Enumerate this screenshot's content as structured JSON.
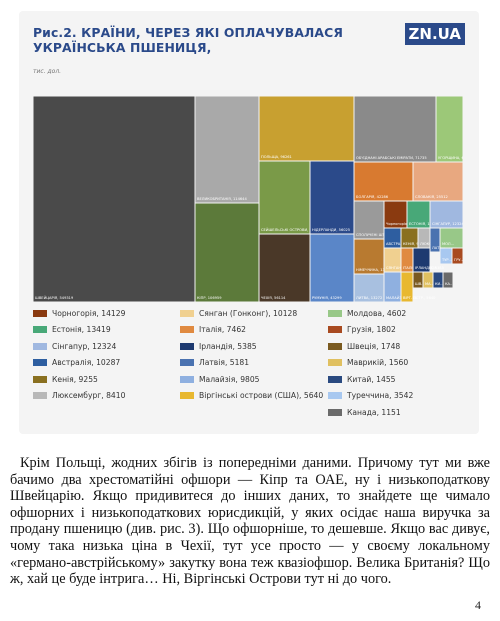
{
  "figure": {
    "title": "Рис.2. КРАЇНИ, ЧЕРЕЗ ЯКІ ОПЛАЧУВАЛАСЯ УКРАЇНСЬКА ПШЕНИЦЯ,",
    "logo": "ZN.UA",
    "unit": "тис. дол."
  },
  "chart_data": {
    "type": "treemap",
    "title": "Рис.2. КРАЇНИ, ЧЕРЕЗ ЯКІ ОПЛАЧУВАЛАСЯ УКРАЇНСЬКА ПШЕНИЦЯ,",
    "unit": "тис. дол.",
    "items": [
      {
        "name": "Швейцарія",
        "value": 549319,
        "color": "#4a4a4a",
        "label": "ШВЕЙЦАРІЯ, 549319"
      },
      {
        "name": "Великобританія",
        "value": 114644,
        "color": "#a9a9a9",
        "label": "ВЕЛИКОБРИТАНІЯ, 114644"
      },
      {
        "name": "Кіпр",
        "value": 106959,
        "color": "#5c7a3a",
        "label": "КІПР, 106959"
      },
      {
        "name": "Польща",
        "value": 96261,
        "color": "#c8a030",
        "label": "ПОЛЬЩА, 96261"
      },
      {
        "name": "Сейшельські острови",
        "value": 58977,
        "color": "#7a9a48",
        "label": "СЕЙШЕЛЬСЬКІ ОСТРОВИ, 58977"
      },
      {
        "name": "Чехія",
        "value": 56114,
        "color": "#4a3828",
        "label": "ЧЕХІЯ, 56114"
      },
      {
        "name": "Нідерланди",
        "value": 56025,
        "color": "#2b4a8a",
        "label": "НІДЕРЛАНДИ, 56025"
      },
      {
        "name": "Румунія",
        "value": 43299,
        "color": "#5a86c8",
        "label": "РУМУНІЯ, 43299"
      },
      {
        "name": "Об'єднані Арабські Емірати",
        "value": 71735,
        "color": "#8a8a8a",
        "label": "ОБ'ЄДНАНІ АРАБСЬКІ ЕМІРАТИ, 71735"
      },
      {
        "name": "Угорщина",
        "value": 62198,
        "color": "#9cc878",
        "label": "УГОРЩИНА, 62198"
      },
      {
        "name": "Болгарія",
        "value": 42286,
        "color": "#d87a30",
        "label": "БОЛГАРІЯ, 42286"
      },
      {
        "name": "Словакія",
        "value": 25512,
        "color": "#e8a880",
        "label": "СЛОВАКІЯ, 25512"
      },
      {
        "name": "Сполучені Штати Америки",
        "value": 15250,
        "color": "#9a9a9a",
        "label": "СПОЛУЧЕНІ ШТАТИ АМЕРИКИ, 15250"
      },
      {
        "name": "Німеччина",
        "value": 13348,
        "color": "#b87a30",
        "label": "НІМЕЧЧИНА, 13348"
      },
      {
        "name": "Литва",
        "value": 13272,
        "color": "#a8c0e0",
        "label": "ЛИТВА, 13272"
      },
      {
        "name": "Чорногорія",
        "value": 14129,
        "color": "#8a3a10",
        "label": "Чорногорія, 14129"
      },
      {
        "name": "Естонія",
        "value": 13419,
        "color": "#48a878",
        "label": "ЕСТОНІЯ, 13419"
      },
      {
        "name": "Сінгапур",
        "value": 12324,
        "color": "#a0b8e0",
        "label": "СІНГАПУР, 12324"
      },
      {
        "name": "Австралія",
        "value": 10287,
        "color": "#2e5ea0",
        "label": "АВСТРАЛІЯ, 10287"
      },
      {
        "name": "Кенія",
        "value": 9255,
        "color": "#8a7020",
        "label": "КЕНІЯ, 9255"
      },
      {
        "name": "Люксембург",
        "value": 8410,
        "color": "#b8b8b8",
        "label": "ЛЮКСЕМБУРГ, 8410"
      },
      {
        "name": "Сянган (Гонконг)",
        "value": 10128,
        "color": "#f0d090",
        "label": "СЯНГАН (ГОНКОНГ), 10128"
      },
      {
        "name": "Італія",
        "value": 7462,
        "color": "#e08a40",
        "label": "ІТАЛІЯ, 7462"
      },
      {
        "name": "Ірландія",
        "value": 5385,
        "color": "#1e3a70",
        "label": "ІРЛАНДІЯ, 5385"
      },
      {
        "name": "Латвія",
        "value": 5181,
        "color": "#4a72b0",
        "label": "ЛАТВІЯ, 5181"
      },
      {
        "name": "Малайзія",
        "value": 9805,
        "color": "#8fb0e0",
        "label": "МАЛАЙЗІЯ, 9805"
      },
      {
        "name": "Віргінські острови (США)",
        "value": 5640,
        "color": "#e8b830",
        "label": "ВІРГ. ОСТР., 5640"
      },
      {
        "name": "Молдова",
        "value": 4602,
        "color": "#98c888",
        "label": "МОЛ..."
      },
      {
        "name": "Грузія",
        "value": 1802,
        "color": "#a84a20",
        "label": "ГРУ..."
      },
      {
        "name": "Швеція",
        "value": 1748,
        "color": "#7a5a20",
        "label": "ШВ..."
      },
      {
        "name": "Маврикій",
        "value": 1560,
        "color": "#e0c060",
        "label": "МА..."
      },
      {
        "name": "Китай",
        "value": 1455,
        "color": "#2a4a80",
        "label": "КИ..."
      },
      {
        "name": "Туреччина",
        "value": 3542,
        "color": "#a8c8f0",
        "label": "ТУР..."
      },
      {
        "name": "Канада",
        "value": 1151,
        "color": "#6a6a6a",
        "label": "КА..."
      }
    ]
  },
  "legend": [
    {
      "label": "Чорногорія, 14129",
      "color": "#8a3a10"
    },
    {
      "label": "Естонія, 13419",
      "color": "#48a878"
    },
    {
      "label": "Сінгапур, 12324",
      "color": "#a0b8e0"
    },
    {
      "label": "Австралія, 10287",
      "color": "#2e5ea0"
    },
    {
      "label": "Кенія, 9255",
      "color": "#8a7020"
    },
    {
      "label": "Люксембург, 8410",
      "color": "#b8b8b8"
    },
    {
      "label": "Сянган (Гонконг), 10128",
      "color": "#f0d090"
    },
    {
      "label": "Італія, 7462",
      "color": "#e08a40"
    },
    {
      "label": "Ірландія, 5385",
      "color": "#1e3a70"
    },
    {
      "label": "Латвія, 5181",
      "color": "#4a72b0"
    },
    {
      "label": "Малайзія, 9805",
      "color": "#8fb0e0"
    },
    {
      "label": "Віргінські острови (США), 5640",
      "color": "#e8b830"
    },
    {
      "label": "Молдова, 4602",
      "color": "#98c888"
    },
    {
      "label": "Грузія, 1802",
      "color": "#a84a20"
    },
    {
      "label": "Швеція, 1748",
      "color": "#7a5a20"
    },
    {
      "label": "Маврикій, 1560",
      "color": "#e0c060"
    },
    {
      "label": "Китай, 1455",
      "color": "#2a4a80"
    },
    {
      "label": "Туреччина, 3542",
      "color": "#a8c8f0"
    },
    {
      "label": "Канада, 1151",
      "color": "#6a6a6a"
    }
  ],
  "body_text": "Крім Польщі, жодних збігів із попередніми даними. Причому тут ми вже бачимо два хрестоматійні офшори — Кіпр та ОАЕ, ну і низькоподаткову Швейцарію. Якщо придивитеся до інших даних, то знайдете ще чимало офшорних і низькоподаткових юрисдикцій, у яких осідає наша виручка за продану пшеницю (див. рис. 3). Що офшорніше, то дешевше. Якщо вас дивує, чому така низька ціна в Чехії, тут усе просто — у своєму локальному «германо-австрійському» закутку вона теж квазіофшор. Велика Британія? Що ж, хай це буде інтрига… Ні, Віргінські Острови тут ні до чого.",
  "page_number": "4"
}
